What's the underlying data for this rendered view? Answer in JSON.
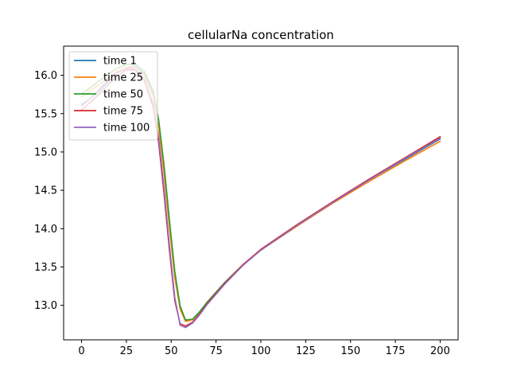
{
  "chart_data": {
    "type": "line",
    "title": "cellularNa concentration",
    "xlabel": "",
    "ylabel": "",
    "xlim": [
      -10,
      210
    ],
    "ylim": [
      12.55,
      16.38
    ],
    "xticks": [
      0,
      25,
      50,
      75,
      100,
      125,
      150,
      175,
      200
    ],
    "yticks": [
      13.0,
      13.5,
      14.0,
      14.5,
      15.0,
      15.5,
      16.0
    ],
    "grid": false,
    "legend_position": "top-left",
    "series": [
      {
        "name": "time 1",
        "color": "#1f77b4",
        "x": [
          0,
          5,
          10,
          15,
          20,
          25,
          30,
          35,
          40,
          43,
          46,
          49,
          52,
          55,
          58,
          62,
          66,
          70,
          80,
          90,
          100,
          120,
          140,
          160,
          180,
          200
        ],
        "y": [
          15.62,
          15.7,
          15.8,
          15.92,
          16.03,
          16.1,
          16.12,
          16.02,
          15.75,
          15.35,
          14.75,
          14.05,
          13.38,
          12.97,
          12.8,
          12.82,
          12.92,
          13.04,
          13.3,
          13.53,
          13.72,
          14.04,
          14.34,
          14.63,
          14.9,
          15.17
        ]
      },
      {
        "name": "time 25",
        "color": "#ff7f0e",
        "x": [
          0,
          5,
          10,
          15,
          20,
          25,
          30,
          35,
          40,
          43,
          46,
          49,
          52,
          55,
          58,
          62,
          66,
          70,
          80,
          90,
          100,
          120,
          140,
          160,
          180,
          200
        ],
        "y": [
          15.72,
          15.8,
          15.88,
          15.97,
          16.05,
          16.1,
          16.11,
          16.0,
          15.73,
          15.33,
          14.72,
          14.02,
          13.36,
          12.95,
          12.79,
          12.81,
          12.91,
          13.04,
          13.3,
          13.53,
          13.72,
          14.03,
          14.33,
          14.61,
          14.88,
          15.14
        ]
      },
      {
        "name": "time 50",
        "color": "#2ca02c",
        "x": [
          0,
          5,
          10,
          15,
          20,
          25,
          30,
          35,
          40,
          43,
          46,
          49,
          52,
          55,
          58,
          62,
          66,
          70,
          80,
          90,
          100,
          120,
          140,
          160,
          180,
          200
        ],
        "y": [
          15.76,
          15.84,
          15.93,
          16.02,
          16.09,
          16.14,
          16.15,
          16.05,
          15.8,
          15.42,
          14.83,
          14.12,
          13.44,
          12.99,
          12.81,
          12.82,
          12.92,
          13.04,
          13.3,
          13.53,
          13.72,
          14.04,
          14.34,
          14.63,
          14.91,
          15.18
        ]
      },
      {
        "name": "time 75",
        "color": "#d62728",
        "x": [
          0,
          5,
          10,
          15,
          20,
          25,
          30,
          35,
          40,
          43,
          46,
          49,
          52,
          55,
          58,
          62,
          66,
          70,
          80,
          90,
          100,
          120,
          140,
          160,
          180,
          200
        ],
        "y": [
          15.55,
          15.65,
          15.76,
          15.88,
          15.99,
          16.07,
          16.07,
          15.93,
          15.58,
          15.12,
          14.45,
          13.72,
          13.06,
          12.76,
          12.73,
          12.78,
          12.89,
          13.02,
          13.29,
          13.53,
          13.73,
          14.05,
          14.35,
          14.64,
          14.92,
          15.2
        ]
      },
      {
        "name": "time 100",
        "color": "#9467bd",
        "x": [
          0,
          5,
          10,
          15,
          20,
          25,
          30,
          35,
          40,
          43,
          46,
          49,
          52,
          55,
          58,
          62,
          66,
          70,
          80,
          90,
          100,
          120,
          140,
          160,
          180,
          200
        ],
        "y": [
          15.6,
          15.7,
          15.82,
          15.94,
          16.03,
          16.09,
          16.08,
          15.95,
          15.62,
          15.18,
          14.52,
          13.78,
          13.1,
          12.74,
          12.71,
          12.77,
          12.88,
          13.01,
          13.28,
          13.52,
          13.72,
          14.04,
          14.34,
          14.63,
          14.91,
          15.18
        ]
      }
    ]
  }
}
